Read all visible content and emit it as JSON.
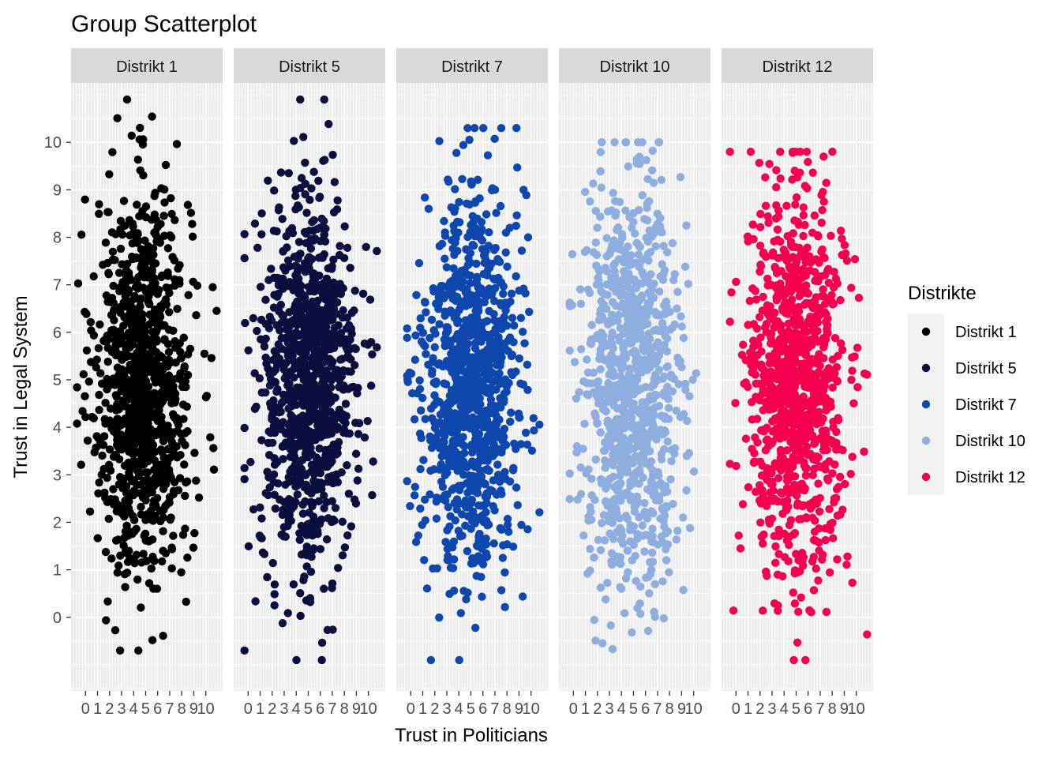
{
  "chart_data": {
    "type": "scatter",
    "title": "Group Scatterplot",
    "xlabel": "Trust in Politicians",
    "ylabel": "Trust in Legal System",
    "x_ticks": [
      0,
      1,
      2,
      3,
      4,
      5,
      6,
      7,
      8,
      9,
      10
    ],
    "y_ticks": [
      0,
      1,
      2,
      3,
      4,
      5,
      6,
      7,
      8,
      9,
      10
    ],
    "xlim": [
      -1.2,
      11.4
    ],
    "ylim": [
      -1.55,
      11.25
    ],
    "facet_by": "Distrikte",
    "legend": {
      "title": "Distrikte",
      "position": "right"
    },
    "panel_background": "#EBEBEB",
    "strip_background": "#D9D9D9",
    "series": [
      {
        "name": "Distrikt 1",
        "color": "#000000",
        "points_per_panel": 1000,
        "x_mean": 4.8,
        "x_sd": 2.0,
        "y_mean": 4.9,
        "y_sd": 2.0,
        "x_range": [
          -0.7,
          10.9
        ],
        "y_range": [
          -0.7,
          10.9
        ]
      },
      {
        "name": "Distrikt 5",
        "color": "#0A0F3F",
        "points_per_panel": 1000,
        "x_mean": 5.0,
        "x_sd": 2.0,
        "y_mean": 4.9,
        "y_sd": 2.0,
        "x_range": [
          -0.3,
          10.7
        ],
        "y_range": [
          -0.9,
          10.9
        ]
      },
      {
        "name": "Distrikt 7",
        "color": "#0E47AD",
        "points_per_panel": 1000,
        "x_mean": 5.0,
        "x_sd": 2.0,
        "y_mean": 4.9,
        "y_sd": 2.0,
        "x_range": [
          -0.3,
          10.7
        ],
        "y_range": [
          -0.9,
          10.3
        ]
      },
      {
        "name": "Distrikt 10",
        "color": "#8FAEE0",
        "points_per_panel": 1000,
        "x_mean": 4.9,
        "x_sd": 2.0,
        "y_mean": 4.9,
        "y_sd": 2.0,
        "x_range": [
          -0.3,
          10.7
        ],
        "y_range": [
          -0.7,
          10.0
        ]
      },
      {
        "name": "Distrikt 12",
        "color": "#F5004F",
        "points_per_panel": 1000,
        "x_mean": 5.0,
        "x_sd": 2.0,
        "y_mean": 4.9,
        "y_sd": 2.0,
        "x_range": [
          -0.5,
          10.9
        ],
        "y_range": [
          -0.9,
          9.8
        ]
      }
    ]
  }
}
